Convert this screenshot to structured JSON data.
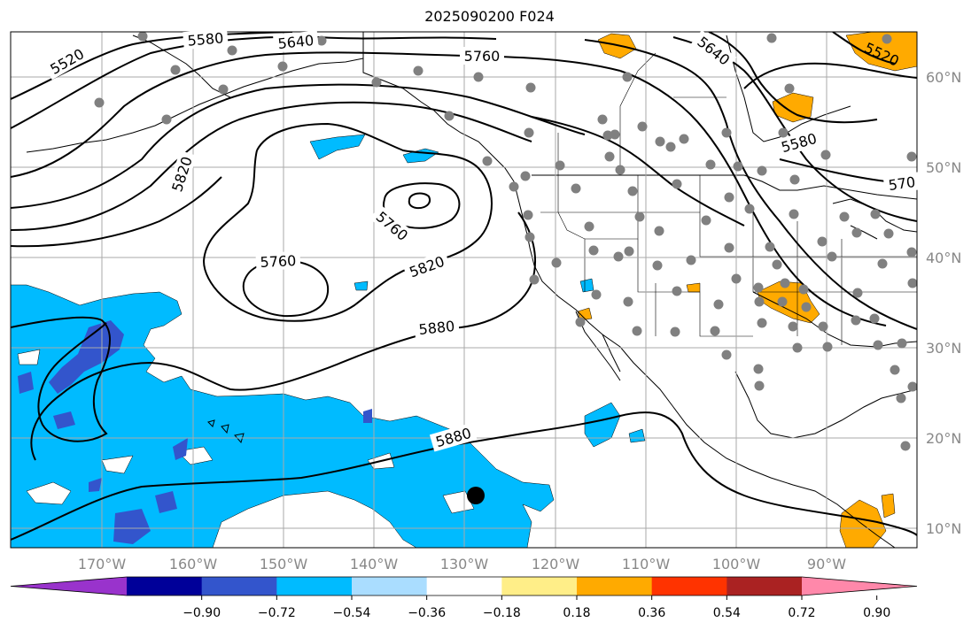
{
  "title": "2025090200 F024",
  "lon_labels": [
    "170°W",
    "160°W",
    "150°W",
    "140°W",
    "130°W",
    "120°W",
    "110°W",
    "100°W",
    "90°W"
  ],
  "lat_labels": [
    "60°N",
    "50°N",
    "40°N",
    "30°N",
    "20°N",
    "10°N"
  ],
  "contour_labels": [
    "5520",
    "5580",
    "5640",
    "5760",
    "5640",
    "5520",
    "5820",
    "5760",
    "5760",
    "5820",
    "5880",
    "5880",
    "5580",
    "570"
  ],
  "colorbar": {
    "colors": [
      "#9933cc",
      "#000099",
      "#3355cc",
      "#00bbff",
      "#aaddff",
      "#ffffff",
      "#ffee88",
      "#ffaa00",
      "#ff3300",
      "#aa2222",
      "#ff88aa"
    ],
    "tick_labels": [
      "−0.90",
      "−0.72",
      "−0.54",
      "−0.36",
      "−0.18",
      "0.18",
      "0.36",
      "0.54",
      "0.72",
      "0.90"
    ]
  },
  "legend_colors": {
    "cyan_fill": "#00bbff",
    "dark_blue_fill": "#3355cc",
    "orange_fill": "#ffaa00",
    "station": "#808080"
  }
}
